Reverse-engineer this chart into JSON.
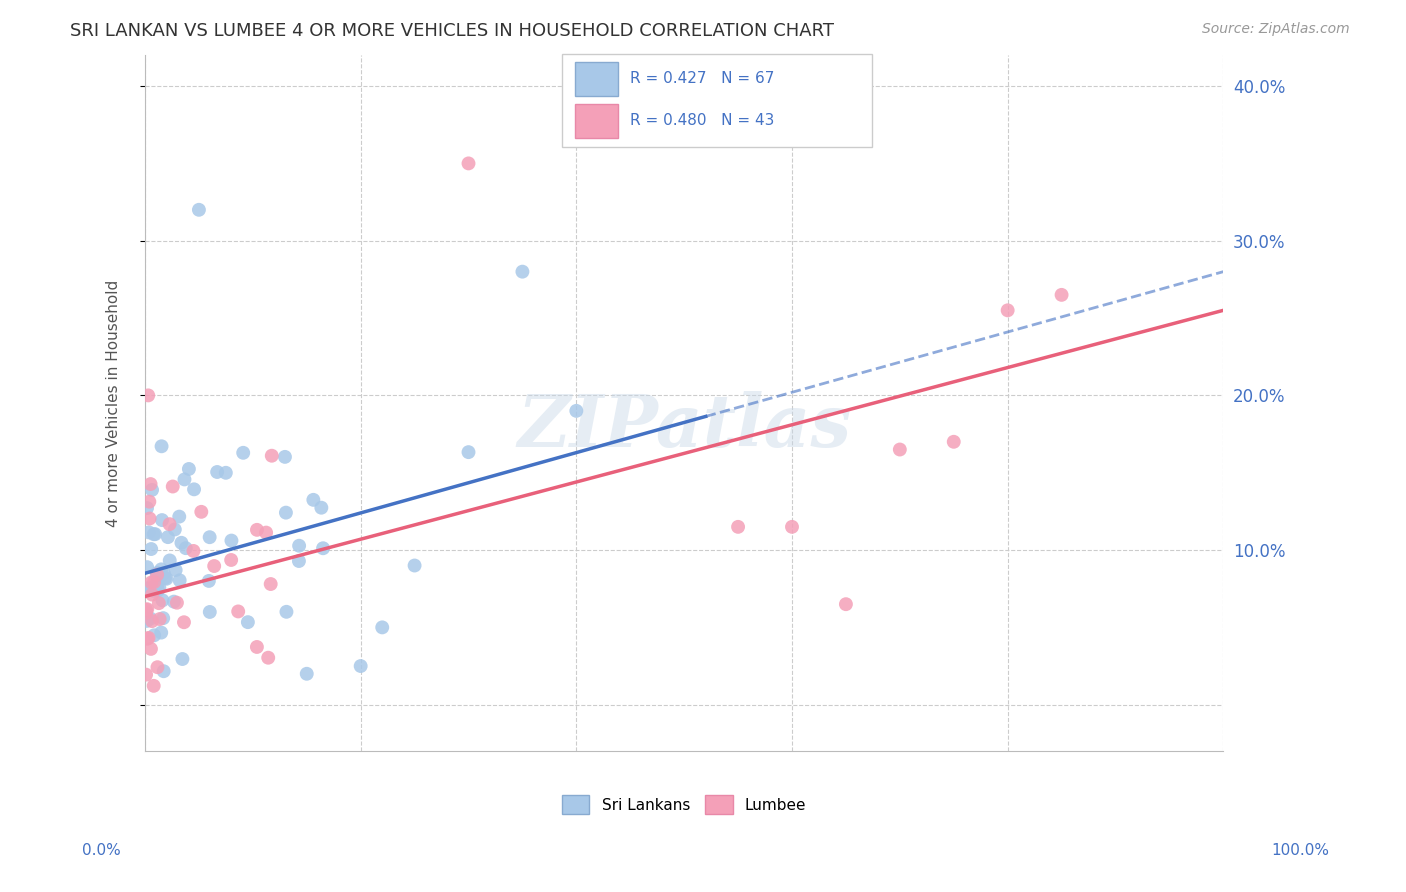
{
  "title": "SRI LANKAN VS LUMBEE 4 OR MORE VEHICLES IN HOUSEHOLD CORRELATION CHART",
  "source": "Source: ZipAtlas.com",
  "ylabel": "4 or more Vehicles in Household",
  "watermark": "ZIPatlas",
  "sri_lankan_R": 0.427,
  "sri_lankan_N": 67,
  "lumbee_R": 0.48,
  "lumbee_N": 43,
  "sri_lankan_color": "#a8c8e8",
  "lumbee_color": "#f4a0b8",
  "sri_lankan_line_color": "#4472c4",
  "lumbee_line_color": "#e8607a",
  "sri_lankan_slope": 0.195,
  "sri_lankan_intercept": 8.5,
  "lumbee_slope": 0.185,
  "lumbee_intercept": 7.0,
  "sri_lankan_solid_end": 52,
  "xlim": [
    0,
    100
  ],
  "ylim": [
    -3,
    42
  ],
  "yticks": [
    0,
    10,
    20,
    30,
    40
  ],
  "grid_color": "#cccccc",
  "background_color": "#ffffff",
  "title_color": "#333333",
  "axis_label_color": "#555555",
  "tick_label_color": "#4472c4"
}
